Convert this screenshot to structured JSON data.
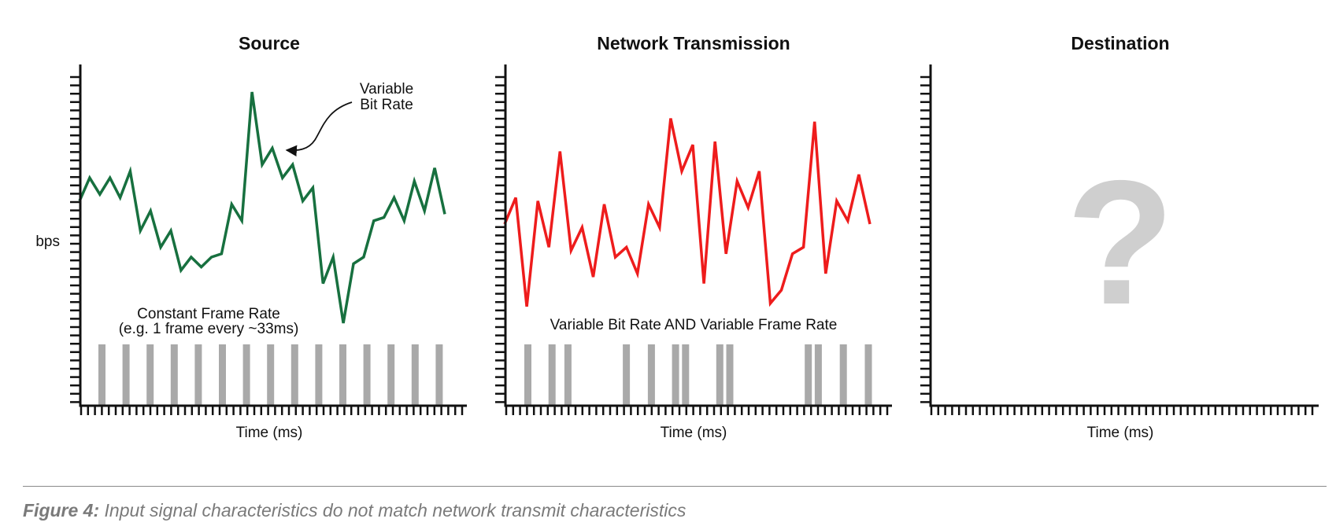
{
  "panels": [
    {
      "title": "Source",
      "y_label": "bps",
      "x_label": "Time (ms)",
      "line_color": "#17703f",
      "signal": [
        62,
        69,
        64,
        69,
        63,
        71,
        53,
        59,
        48,
        53,
        41,
        45,
        42,
        45,
        46,
        61,
        56,
        95,
        73,
        78,
        69,
        73,
        62,
        66,
        37,
        45,
        25,
        43,
        45,
        56,
        57,
        63,
        56,
        68,
        59,
        72,
        58
      ],
      "frame_label_line1": "Constant Frame Rate",
      "frame_label_line2": "(e.g. 1 frame every ~33ms)",
      "frames": [
        1,
        2,
        3,
        4,
        5,
        6,
        7,
        8,
        9,
        10,
        11,
        12,
        13,
        14,
        15
      ],
      "annotation_line1": "Variable",
      "annotation_line2": "Bit Rate"
    },
    {
      "title": "Network Transmission",
      "x_label": "Time (ms)",
      "line_color": "#ee1c1c",
      "signal": [
        55,
        63,
        30,
        62,
        48,
        77,
        47,
        54,
        39,
        61,
        45,
        48,
        40,
        61,
        54,
        87,
        71,
        79,
        37,
        80,
        46,
        68,
        60,
        71,
        31,
        35,
        46,
        48,
        86,
        40,
        62,
        56,
        70,
        55
      ],
      "frame_label": "Variable Bit Rate AND Variable Frame Rate",
      "frames": [
        1,
        2.45,
        3.4,
        6.9,
        8.4,
        9.85,
        10.45,
        12.5,
        13.1,
        17.8,
        18.4,
        19.9,
        21.4
      ]
    },
    {
      "title": "Destination",
      "x_label": "Time (ms)",
      "unknown_symbol": "?"
    }
  ],
  "caption": {
    "label": "Figure 4:",
    "text": "Input signal characteristics do not match network transmit characteristics"
  }
}
